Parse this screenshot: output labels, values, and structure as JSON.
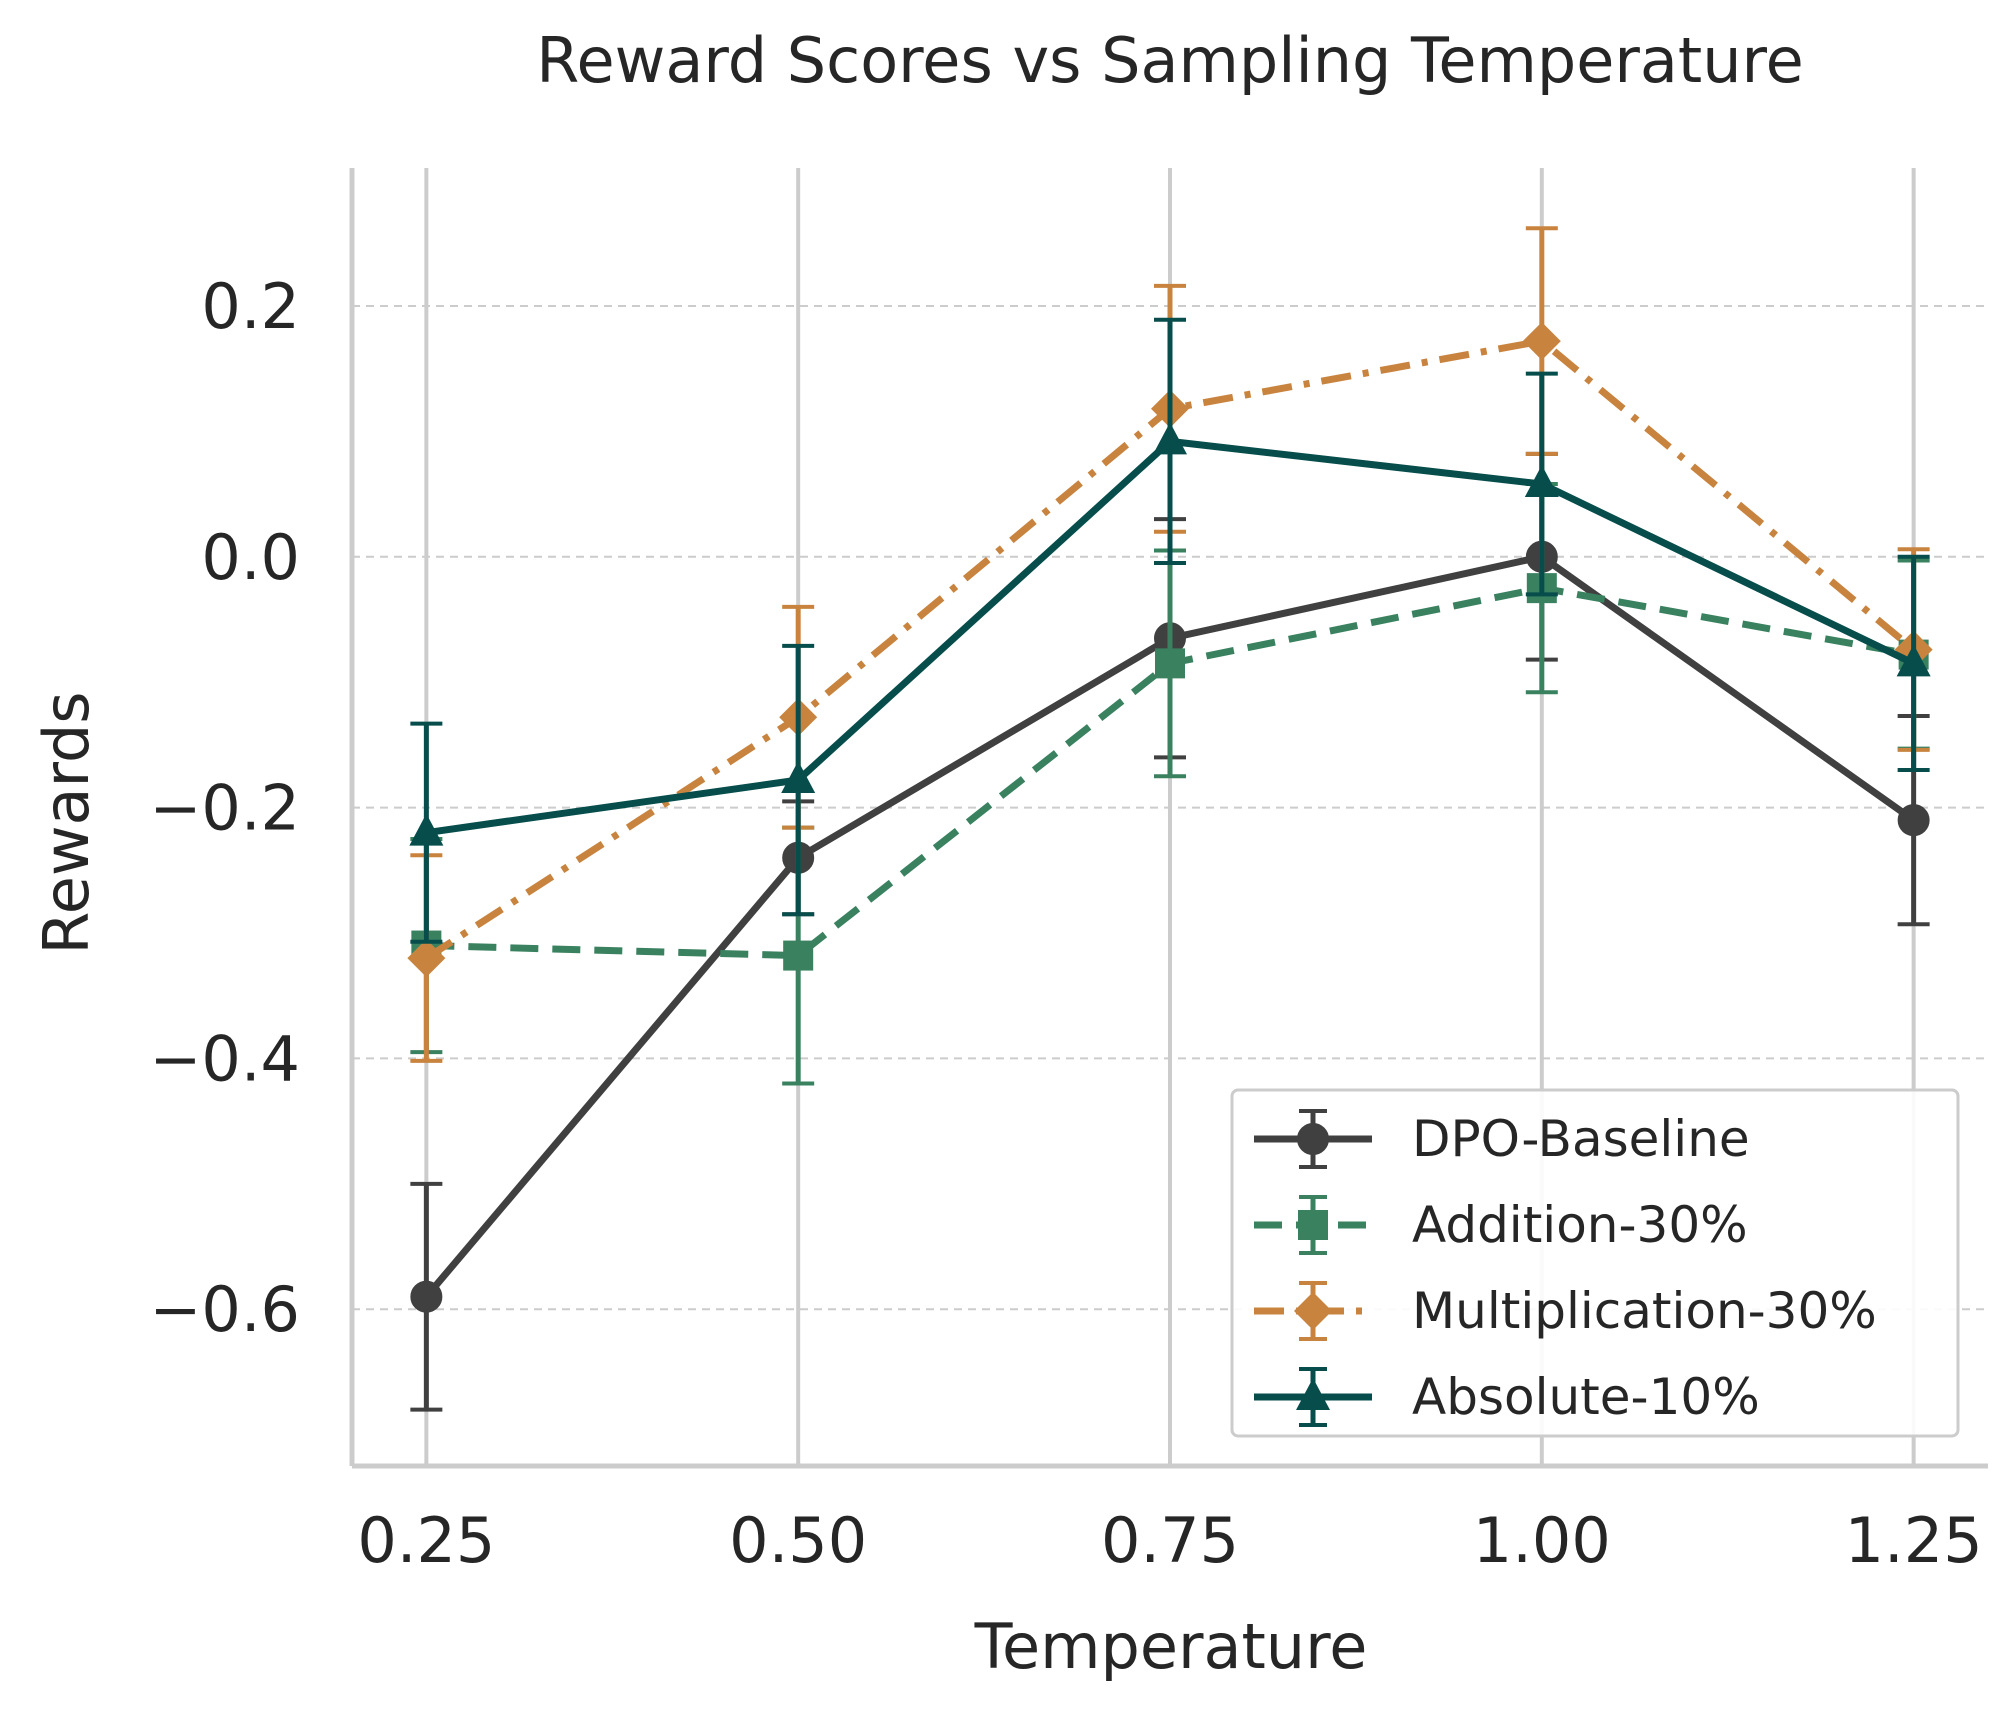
{
  "chart_data": {
    "type": "line",
    "title": "Reward Scores vs Sampling Temperature",
    "xlabel": "Temperature",
    "ylabel": "Rewards",
    "x": [
      0.25,
      0.5,
      0.75,
      1.0,
      1.25
    ],
    "xtick_labels": [
      "0.25",
      "0.50",
      "0.75",
      "1.00",
      "1.25"
    ],
    "yticks": [
      0.2,
      0.0,
      -0.2,
      -0.4,
      -0.6
    ],
    "ytick_labels": [
      "0.2",
      "0.0",
      "−0.2",
      "−0.4",
      "−0.6"
    ],
    "xlim": [
      0.2,
      1.3
    ],
    "ylim": [
      -0.725,
      0.31
    ],
    "grid": true,
    "legend_position": "bottom-right",
    "series": [
      {
        "name": "DPO-Baseline",
        "values": [
          -0.59,
          -0.24,
          -0.065,
          0.0,
          -0.21
        ],
        "errors": [
          0.09,
          0.045,
          0.095,
          0.082,
          0.083
        ],
        "color": "#404040",
        "marker": "circle",
        "dash": "solid"
      },
      {
        "name": "Addition-30%",
        "values": [
          -0.31,
          -0.318,
          -0.085,
          -0.025,
          -0.078
        ],
        "errors": [
          0.085,
          0.102,
          0.09,
          0.083,
          0.075
        ],
        "color": "#3a8160",
        "marker": "square",
        "dash": "dashed"
      },
      {
        "name": "Multiplication-30%",
        "values": [
          -0.32,
          -0.128,
          0.118,
          0.172,
          -0.074
        ],
        "errors": [
          0.082,
          0.088,
          0.098,
          0.09,
          0.08
        ],
        "color": "#c8843f",
        "marker": "diamond",
        "dash": "dashdot"
      },
      {
        "name": "Absolute-10%",
        "values": [
          -0.22,
          -0.178,
          0.092,
          0.058,
          -0.085
        ],
        "errors": [
          0.087,
          0.107,
          0.097,
          0.088,
          0.085
        ],
        "color": "#064d4c",
        "marker": "triangle",
        "dash": "solid"
      }
    ]
  }
}
